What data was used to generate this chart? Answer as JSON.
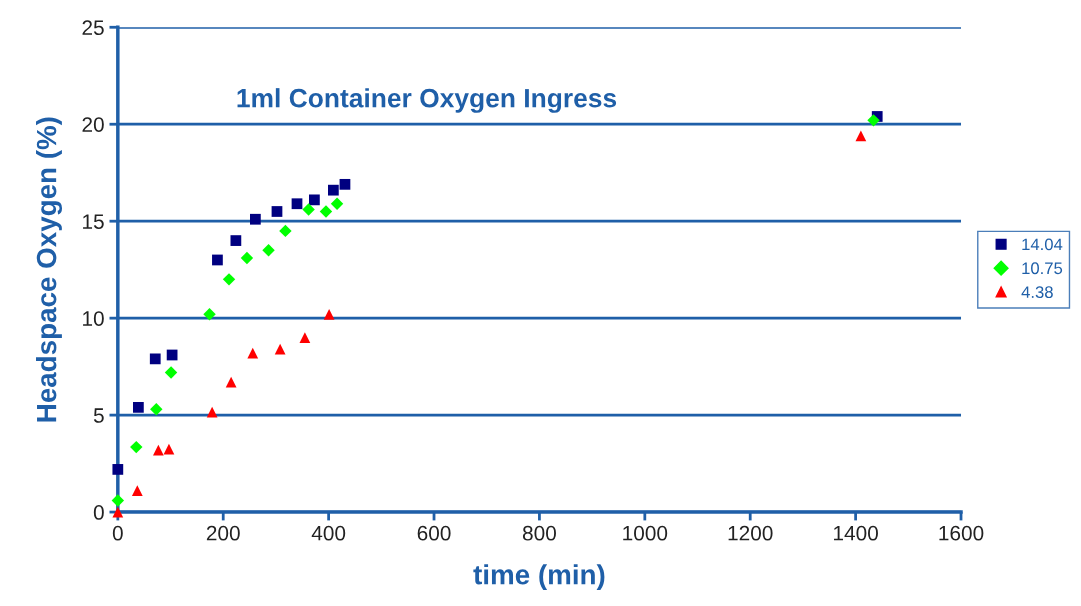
{
  "chart_data": {
    "type": "scatter",
    "title": "1ml Container Oxygen Ingress",
    "xlabel": "time (min)",
    "ylabel": "Headspace Oxygen (%)",
    "xlim": [
      0,
      1600
    ],
    "xticks": [
      0,
      200,
      400,
      600,
      800,
      1000,
      1200,
      1400,
      1600
    ],
    "ylim": [
      0,
      25
    ],
    "yticks": [
      0,
      5,
      10,
      15,
      20,
      25
    ],
    "grid": "y",
    "legend": "right",
    "series": [
      {
        "name": "14.04",
        "color": "#000080",
        "marker": "square",
        "x": [
          0,
          39,
          71,
          103,
          189,
          224,
          261,
          302,
          340,
          373,
          409,
          431,
          1441
        ],
        "values": [
          2.2,
          5.4,
          7.9,
          8.1,
          13.0,
          14.0,
          15.1,
          15.5,
          15.9,
          16.1,
          16.6,
          16.9,
          20.4
        ]
      },
      {
        "name": "10.75",
        "color": "#00ff00",
        "marker": "diamond",
        "x": [
          0,
          35,
          73,
          101,
          174,
          211,
          245,
          286,
          318,
          362,
          395,
          416,
          1434
        ],
        "values": [
          0.6,
          3.35,
          5.3,
          7.2,
          10.2,
          12.0,
          13.1,
          13.5,
          14.5,
          15.6,
          15.5,
          15.9,
          20.2
        ]
      },
      {
        "name": "4.38",
        "color": "#ff0000",
        "marker": "triangle",
        "x": [
          0,
          37,
          77,
          97,
          179,
          215,
          256,
          308,
          355,
          401,
          1410
        ],
        "values": [
          0,
          1.1,
          3.2,
          3.25,
          5.15,
          6.7,
          8.2,
          8.4,
          9.0,
          10.2,
          19.4
        ]
      }
    ]
  }
}
